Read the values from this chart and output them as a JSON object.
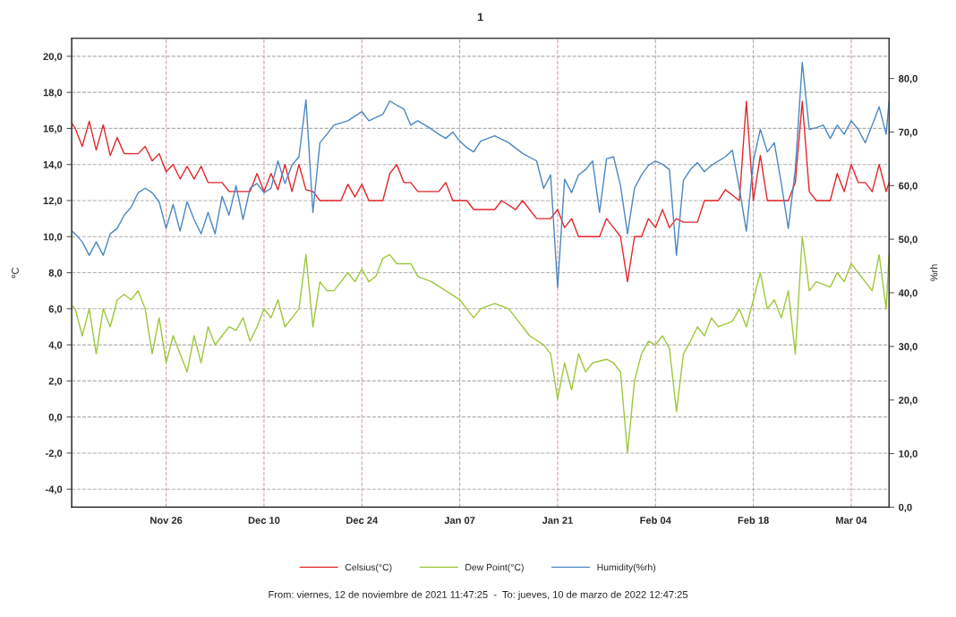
{
  "chart_data": {
    "type": "line",
    "title": "1",
    "ylabel": "ºC",
    "y2label": "%rh",
    "xlim": [
      "2021-11-12T11:47",
      "2022-03-09T10:00"
    ],
    "xticks": [
      {
        "value": "2021-11-26",
        "label": "Nov 26"
      },
      {
        "value": "2021-12-10",
        "label": "Dec 10"
      },
      {
        "value": "2021-12-24",
        "label": "Dec 24"
      },
      {
        "value": "2022-01-07",
        "label": "Jan 07"
      },
      {
        "value": "2022-01-21",
        "label": "Jan 21"
      },
      {
        "value": "2022-02-04",
        "label": "Feb 04"
      },
      {
        "value": "2022-02-18",
        "label": "Feb 18"
      },
      {
        "value": "2022-03-04",
        "label": "Mar 04"
      }
    ],
    "ylim": [
      -5,
      21
    ],
    "yticks": [
      {
        "value": -4,
        "label": "-4,0"
      },
      {
        "value": -2,
        "label": "-2,0"
      },
      {
        "value": 0,
        "label": "0,0"
      },
      {
        "value": 2,
        "label": "2,0"
      },
      {
        "value": 4,
        "label": "4,0"
      },
      {
        "value": 6,
        "label": "6,0"
      },
      {
        "value": 8,
        "label": "8,0"
      },
      {
        "value": 10,
        "label": "10,0"
      },
      {
        "value": 12,
        "label": "12,0"
      },
      {
        "value": 14,
        "label": "14,0"
      },
      {
        "value": 16,
        "label": "16,0"
      },
      {
        "value": 18,
        "label": "18,0"
      },
      {
        "value": 20,
        "label": "20,0"
      }
    ],
    "y2lim": [
      0,
      87.5
    ],
    "y2ticks": [
      {
        "value": 0,
        "label": "0,0"
      },
      {
        "value": 10,
        "label": "10,0"
      },
      {
        "value": 20,
        "label": "20,0"
      },
      {
        "value": 30,
        "label": "30,0"
      },
      {
        "value": 40,
        "label": "40,0"
      },
      {
        "value": 50,
        "label": "50,0"
      },
      {
        "value": 60,
        "label": "60,0"
      },
      {
        "value": 70,
        "label": "70,0"
      },
      {
        "value": 80,
        "label": "80,0"
      }
    ],
    "grid": true,
    "legend": "bottom",
    "annotations": [
      "From: viernes, 12 de noviembre de 2021 11:47:25  -  To: jueves, 10 de marzo de 2022 12:47:25"
    ],
    "series": [
      {
        "name": "Celsius(°C)",
        "color": "#e3262b",
        "x": [
          "2021-11-12T12:00",
          "2021-11-13",
          "2021-11-14",
          "2021-11-15",
          "2021-11-16",
          "2021-11-17",
          "2021-11-18",
          "2021-11-19",
          "2021-11-20",
          "2021-11-22",
          "2021-11-23",
          "2021-11-24",
          "2021-11-25",
          "2021-11-26",
          "2021-11-27",
          "2021-11-28",
          "2021-11-29",
          "2021-11-30",
          "2021-12-01",
          "2021-12-02",
          "2021-12-04",
          "2021-12-05",
          "2021-12-08",
          "2021-12-09",
          "2021-12-10",
          "2021-12-11",
          "2021-12-12",
          "2021-12-13",
          "2021-12-14",
          "2021-12-15",
          "2021-12-16",
          "2021-12-17",
          "2021-12-18",
          "2021-12-21",
          "2021-12-22",
          "2021-12-23",
          "2021-12-24",
          "2021-12-25",
          "2021-12-27",
          "2021-12-28",
          "2021-12-29",
          "2021-12-30",
          "2021-12-31",
          "2022-01-01",
          "2022-01-04",
          "2022-01-05",
          "2022-01-06",
          "2022-01-08",
          "2022-01-09",
          "2022-01-12",
          "2022-01-13",
          "2022-01-15",
          "2022-01-16",
          "2022-01-17",
          "2022-01-18",
          "2022-01-20",
          "2022-01-21",
          "2022-01-22",
          "2022-01-23",
          "2022-01-24",
          "2022-01-27",
          "2022-01-28",
          "2022-01-29",
          "2022-01-30",
          "2022-01-31",
          "2022-02-01",
          "2022-02-02",
          "2022-02-03",
          "2022-02-04",
          "2022-02-05",
          "2022-02-06",
          "2022-02-07",
          "2022-02-08",
          "2022-02-10",
          "2022-02-11",
          "2022-02-13",
          "2022-02-14",
          "2022-02-16",
          "2022-02-17",
          "2022-02-18",
          "2022-02-19",
          "2022-02-20",
          "2022-02-23",
          "2022-02-24",
          "2022-02-25",
          "2022-02-26",
          "2022-02-27",
          "2022-03-01",
          "2022-03-02",
          "2022-03-03",
          "2022-03-04",
          "2022-03-05",
          "2022-03-06",
          "2022-03-07",
          "2022-03-08",
          "2022-03-09T00:00",
          "2022-03-09T10:00"
        ],
        "values": [
          16.3,
          16.0,
          15.0,
          16.4,
          14.8,
          16.2,
          14.5,
          15.5,
          14.6,
          14.6,
          15.0,
          14.2,
          14.6,
          13.6,
          14.0,
          13.2,
          13.9,
          13.2,
          13.9,
          13.0,
          13.0,
          12.5,
          12.5,
          13.5,
          12.5,
          13.5,
          12.6,
          14.0,
          12.5,
          14.0,
          12.6,
          12.5,
          12.0,
          12.0,
          12.9,
          12.2,
          12.9,
          12.0,
          12.0,
          13.5,
          14.0,
          13.0,
          13.0,
          12.5,
          12.5,
          13.0,
          12.0,
          12.0,
          11.5,
          11.5,
          12.0,
          11.5,
          12.0,
          11.5,
          11.0,
          11.0,
          11.5,
          10.5,
          11.0,
          10.0,
          10.0,
          11.0,
          10.5,
          10.0,
          7.5,
          10.0,
          10.0,
          11.0,
          10.5,
          11.5,
          10.5,
          11.0,
          10.8,
          10.8,
          12.0,
          12.0,
          12.6,
          12.0,
          17.5,
          12.0,
          14.5,
          12.0,
          12.0,
          13.0,
          17.5,
          12.5,
          12.0,
          12.0,
          13.5,
          12.5,
          14.0,
          13.0,
          13.0,
          12.5,
          14.0,
          12.5,
          13.0
        ]
      },
      {
        "name": "Dew Point(°C)",
        "color": "#9dc83a",
        "x": [
          "2021-11-12T12:00",
          "2021-11-13",
          "2021-11-14",
          "2021-11-15",
          "2021-11-16",
          "2021-11-17",
          "2021-11-18",
          "2021-11-19",
          "2021-11-20",
          "2021-11-21",
          "2021-11-22",
          "2021-11-23",
          "2021-11-24",
          "2021-11-25",
          "2021-11-26",
          "2021-11-27",
          "2021-11-28",
          "2021-11-29",
          "2021-11-30",
          "2021-12-01",
          "2021-12-02",
          "2021-12-03",
          "2021-12-04",
          "2021-12-05",
          "2021-12-06",
          "2021-12-07",
          "2021-12-08",
          "2021-12-09",
          "2021-12-10",
          "2021-12-11",
          "2021-12-12",
          "2021-12-13",
          "2021-12-14",
          "2021-12-15",
          "2021-12-16",
          "2021-12-17",
          "2021-12-18",
          "2021-12-19",
          "2021-12-20",
          "2021-12-21",
          "2021-12-22",
          "2021-12-23",
          "2021-12-24",
          "2021-12-25",
          "2021-12-26",
          "2021-12-27",
          "2021-12-28",
          "2021-12-29",
          "2021-12-31",
          "2022-01-01",
          "2022-01-03",
          "2022-01-05",
          "2022-01-07",
          "2022-01-08",
          "2022-01-09",
          "2022-01-10",
          "2022-01-12",
          "2022-01-14",
          "2022-01-15",
          "2022-01-17",
          "2022-01-19",
          "2022-01-20",
          "2022-01-21",
          "2022-01-22",
          "2022-01-23",
          "2022-01-24",
          "2022-01-25",
          "2022-01-26",
          "2022-01-28",
          "2022-01-29",
          "2022-01-30",
          "2022-01-31",
          "2022-02-01",
          "2022-02-02",
          "2022-02-03",
          "2022-02-04",
          "2022-02-05",
          "2022-02-06",
          "2022-02-07",
          "2022-02-08",
          "2022-02-09",
          "2022-02-10",
          "2022-02-11",
          "2022-02-12",
          "2022-02-13",
          "2022-02-15",
          "2022-02-16",
          "2022-02-17",
          "2022-02-18",
          "2022-02-19",
          "2022-02-20",
          "2022-02-21",
          "2022-02-22",
          "2022-02-23",
          "2022-02-24",
          "2022-02-25",
          "2022-02-26",
          "2022-02-27",
          "2022-03-01",
          "2022-03-02",
          "2022-03-03",
          "2022-03-04",
          "2022-03-05",
          "2022-03-06",
          "2022-03-07",
          "2022-03-08",
          "2022-03-09T00:00",
          "2022-03-09T10:00"
        ],
        "values": [
          6.2,
          6.0,
          4.5,
          6.0,
          3.5,
          6.0,
          5.0,
          6.5,
          6.8,
          6.5,
          7.0,
          6.0,
          3.5,
          5.5,
          3.0,
          4.5,
          3.5,
          2.5,
          4.5,
          3.0,
          5.0,
          4.0,
          4.5,
          5.0,
          4.8,
          5.5,
          4.2,
          5.0,
          6.0,
          5.5,
          6.5,
          5.0,
          5.5,
          6.0,
          9.0,
          5.0,
          7.5,
          7.0,
          7.0,
          7.5,
          8.0,
          7.5,
          8.2,
          7.5,
          7.8,
          8.8,
          9.0,
          8.5,
          8.5,
          7.8,
          7.5,
          7.0,
          6.5,
          6.0,
          5.5,
          6.0,
          6.3,
          6.0,
          5.5,
          4.5,
          4.0,
          3.5,
          1.0,
          3.0,
          1.5,
          3.5,
          2.5,
          3.0,
          3.2,
          3.0,
          2.5,
          -2.0,
          2.0,
          3.5,
          4.2,
          4.0,
          4.5,
          3.8,
          0.3,
          3.5,
          4.2,
          5.0,
          4.5,
          5.5,
          5.0,
          5.3,
          6.0,
          5.0,
          6.5,
          8.0,
          6.0,
          6.5,
          5.5,
          7.0,
          3.5,
          10.0,
          7.0,
          7.5,
          7.2,
          8.0,
          7.5,
          8.5,
          8.0,
          7.5,
          7.0,
          9.0,
          6.0,
          9.0
        ]
      },
      {
        "name": "Humidity(%rh)",
        "color": "#4b87c1",
        "axis": "y2",
        "x": [
          "2021-11-12T12:00",
          "2021-11-13",
          "2021-11-14",
          "2021-11-15",
          "2021-11-16",
          "2021-11-17",
          "2021-11-18",
          "2021-11-19",
          "2021-11-20",
          "2021-11-21",
          "2021-11-22",
          "2021-11-23",
          "2021-11-24",
          "2021-11-25",
          "2021-11-26",
          "2021-11-27",
          "2021-11-28",
          "2021-11-29",
          "2021-11-30",
          "2021-12-01",
          "2021-12-02",
          "2021-12-03",
          "2021-12-04",
          "2021-12-05",
          "2021-12-06",
          "2021-12-07",
          "2021-12-08",
          "2021-12-09",
          "2021-12-10",
          "2021-12-11",
          "2021-12-12",
          "2021-12-13",
          "2021-12-14",
          "2021-12-15",
          "2021-12-16",
          "2021-12-17",
          "2021-12-18",
          "2021-12-19",
          "2021-12-20",
          "2021-12-22",
          "2021-12-24",
          "2021-12-25",
          "2021-12-27",
          "2021-12-28",
          "2021-12-29",
          "2021-12-30",
          "2021-12-31",
          "2022-01-01",
          "2022-01-03",
          "2022-01-04",
          "2022-01-05",
          "2022-01-06",
          "2022-01-07",
          "2022-01-08",
          "2022-01-09",
          "2022-01-10",
          "2022-01-12",
          "2022-01-14",
          "2022-01-16",
          "2022-01-18",
          "2022-01-19",
          "2022-01-20",
          "2022-01-21",
          "2022-01-22",
          "2022-01-23",
          "2022-01-24",
          "2022-01-25",
          "2022-01-26",
          "2022-01-27",
          "2022-01-28",
          "2022-01-29",
          "2022-01-30",
          "2022-01-31",
          "2022-02-01",
          "2022-02-02",
          "2022-02-03",
          "2022-02-04",
          "2022-02-05",
          "2022-02-06",
          "2022-02-07",
          "2022-02-08",
          "2022-02-09",
          "2022-02-10",
          "2022-02-11",
          "2022-02-12",
          "2022-02-14",
          "2022-02-15",
          "2022-02-16",
          "2022-02-17",
          "2022-02-18",
          "2022-02-19",
          "2022-02-20",
          "2022-02-21",
          "2022-02-22",
          "2022-02-23",
          "2022-02-24",
          "2022-02-25",
          "2022-02-26",
          "2022-02-27",
          "2022-02-28",
          "2022-03-01",
          "2022-03-02",
          "2022-03-03",
          "2022-03-04",
          "2022-03-05",
          "2022-03-06",
          "2022-03-07",
          "2022-03-08",
          "2022-03-09T00:00",
          "2022-03-09T10:00"
        ],
        "values": [
          51.5,
          51,
          49.5,
          47,
          49.5,
          47,
          51,
          52,
          54.5,
          56,
          58.7,
          59.5,
          58.7,
          57,
          52,
          56.5,
          51.5,
          57,
          53.7,
          51,
          55,
          51,
          58,
          54.5,
          60,
          53.7,
          59.5,
          60.4,
          58.7,
          59.5,
          64.6,
          60.4,
          63.8,
          65.4,
          76,
          55,
          68,
          69.6,
          71.3,
          72.1,
          73.8,
          72.1,
          73.3,
          75.8,
          75,
          74.3,
          71.3,
          72.1,
          70.5,
          69.6,
          68.8,
          70,
          68.3,
          67.1,
          66.3,
          68.3,
          69.3,
          68,
          66,
          64.6,
          59.5,
          62,
          41,
          61.2,
          58.7,
          62,
          63,
          64.6,
          55,
          65,
          65.4,
          60,
          51,
          59.5,
          62,
          63.8,
          64.6,
          64,
          63,
          47,
          61,
          63,
          64.3,
          62.6,
          63.8,
          65.4,
          66.6,
          59.5,
          51.5,
          64.6,
          70.5,
          66.3,
          68,
          60.4,
          52,
          63,
          83,
          70.5,
          70.8,
          71.3,
          68.8,
          71.3,
          69.6,
          72.1,
          70.5,
          68,
          71.3,
          74.7,
          69.6,
          75.8
        ]
      }
    ]
  }
}
